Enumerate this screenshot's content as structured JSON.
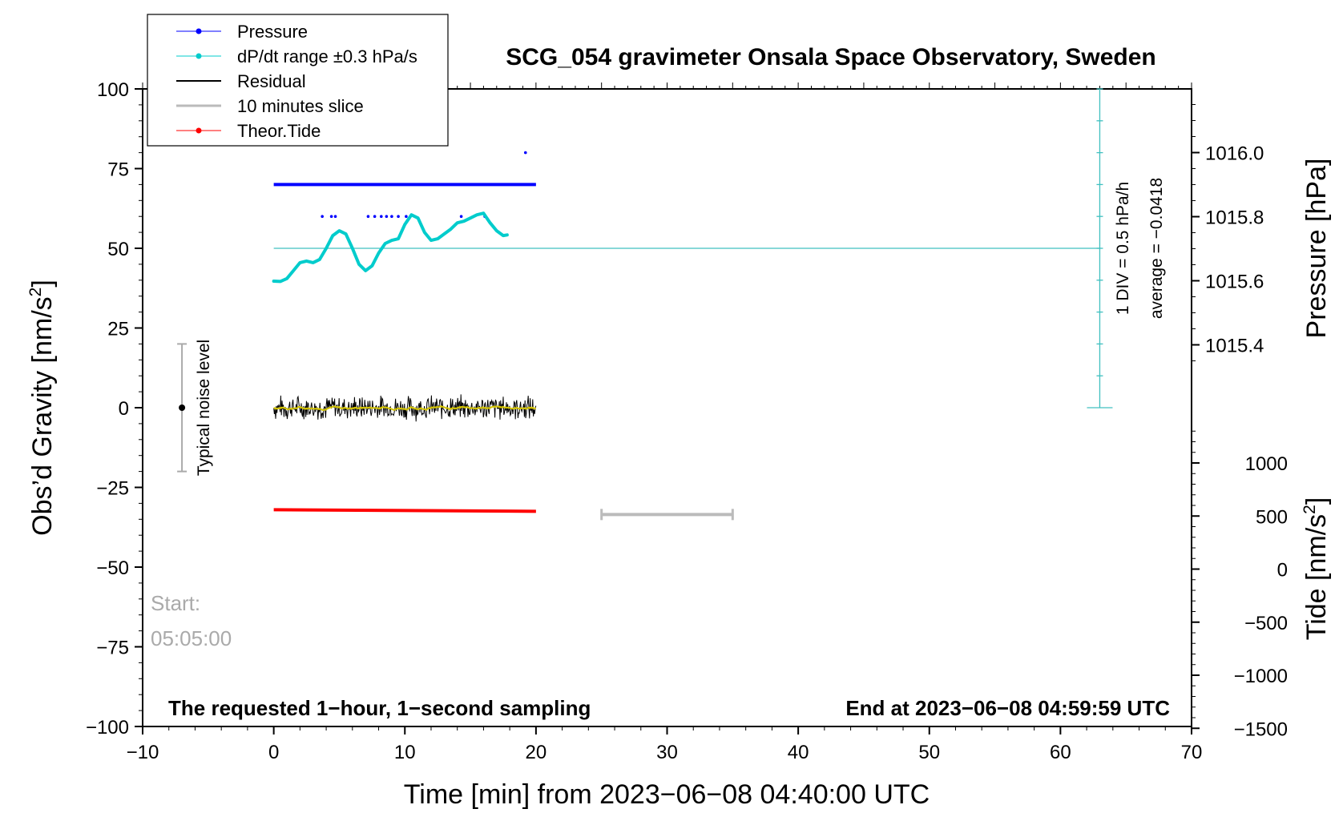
{
  "chart_data": {
    "type": "line",
    "title": "SCG_054 gravimeter Onsala Space Observatory, Sweden",
    "xlabel": "Time [min] from 2023−06−08 04:40:00 UTC",
    "xlim": [
      -10,
      70
    ],
    "x_ticks": [
      -10,
      0,
      10,
      20,
      30,
      40,
      50,
      60,
      70
    ],
    "x_tick_labels": [
      "−10",
      "0",
      "10",
      "20",
      "30",
      "40",
      "50",
      "60",
      "70"
    ],
    "left_axis": {
      "label": "Obs’d Gravity [nm/s²]",
      "label_main": "Obs’d Gravity [nm/s",
      "label_sup": "2",
      "label_end": "]",
      "ylim": [
        -100,
        100
      ],
      "ticks": [
        100,
        75,
        50,
        25,
        0,
        -25,
        -50,
        -75,
        -100
      ],
      "tick_labels": [
        "100",
        "75",
        "50",
        "25",
        "0",
        "−25",
        "−50",
        "−75",
        "−100"
      ]
    },
    "right_pressure_axis": {
      "label": "Pressure [hPa]",
      "ticks": [
        1016.0,
        1015.8,
        1015.6,
        1015.4
      ],
      "tick_labels": [
        "1016.0",
        "1015.8",
        "1015.6",
        "1015.4"
      ]
    },
    "right_tide_axis": {
      "label": "Tide [nm/s²]",
      "label_main": "Tide [nm/s",
      "label_sup": "2",
      "label_end": "]",
      "ticks": [
        1000,
        500,
        0,
        -500,
        -1000,
        -1500
      ],
      "tick_labels": [
        "1000",
        "500",
        "0",
        "−500",
        "−1000",
        "−1500"
      ]
    },
    "legend": {
      "placement": "top-left",
      "entries": [
        "Pressure",
        "dP/dt range ±0.3 hPa/s",
        "Residual",
        "10 minutes slice",
        "Theor.Tide"
      ]
    },
    "series": [
      {
        "name": "Pressure",
        "color": "#0000ff",
        "segments": [
          {
            "x_start": 0,
            "x_end": 20,
            "y": 70
          }
        ],
        "scatter": [
          [
            3.7,
            60
          ],
          [
            4.4,
            60
          ],
          [
            4.7,
            60
          ],
          [
            7.2,
            60
          ],
          [
            7.7,
            60
          ],
          [
            8.2,
            60
          ],
          [
            8.6,
            60
          ],
          [
            9.0,
            60
          ],
          [
            9.5,
            60
          ],
          [
            10.1,
            60
          ],
          [
            14.3,
            60
          ],
          [
            16.1,
            60
          ],
          [
            19.2,
            80
          ]
        ]
      },
      {
        "name": "dP/dt range ±0.3 hPa/s",
        "color": "#00cccc",
        "x": [
          0,
          0.5,
          1,
          1.5,
          2,
          2.5,
          3,
          3.5,
          4,
          4.5,
          5,
          5.5,
          6,
          6.5,
          7,
          7.5,
          8,
          8.5,
          9,
          9.5,
          10,
          10.5,
          11,
          11.5,
          12,
          12.5,
          13,
          13.5,
          14,
          14.5,
          15,
          15.5,
          16,
          16.5,
          17,
          17.5,
          17.8
        ],
        "y": [
          39.7,
          39.6,
          40.5,
          43,
          45.5,
          46,
          45.5,
          46.5,
          50,
          54,
          55.5,
          54.5,
          50,
          45,
          43,
          44.5,
          48.5,
          51.5,
          52.5,
          53,
          57.5,
          60.5,
          59.5,
          55,
          52.5,
          53,
          54.5,
          56,
          58,
          58.5,
          59.5,
          60.5,
          61,
          58,
          55.5,
          54,
          54.2
        ]
      },
      {
        "name": "Residual",
        "color": "#000000",
        "x_range": [
          0,
          20
        ],
        "center": 0,
        "amplitude": 4
      },
      {
        "name": "Theor.Tide",
        "color": "#ff0000",
        "x": [
          0,
          20
        ],
        "y": [
          -32,
          -32.5
        ]
      },
      {
        "name": "10 minutes slice",
        "color": "#bbbbbb",
        "x": [
          25,
          35
        ],
        "y": [
          -33.5,
          -33.5
        ]
      }
    ],
    "reference_line": {
      "y": 50,
      "x_start": 0,
      "x_end": 63,
      "color": "#40c0c0"
    },
    "dpdt_scale": {
      "x": 63,
      "y_bottom": 0,
      "y_top": 100,
      "divisions": 10,
      "label": "1 DIV = 0.5 hPa/h",
      "average_label": "average = −0.0418"
    },
    "noise_bar": {
      "x": -7,
      "center": 0,
      "half_range": 20,
      "label": "Typical noise level"
    },
    "annotations": {
      "start_label": "Start:",
      "start_time": "05:05:00",
      "bottom_left": "The requested 1−hour, 1−second sampling",
      "bottom_right": "End at 2023−06−08 04:59:59 UTC"
    }
  }
}
